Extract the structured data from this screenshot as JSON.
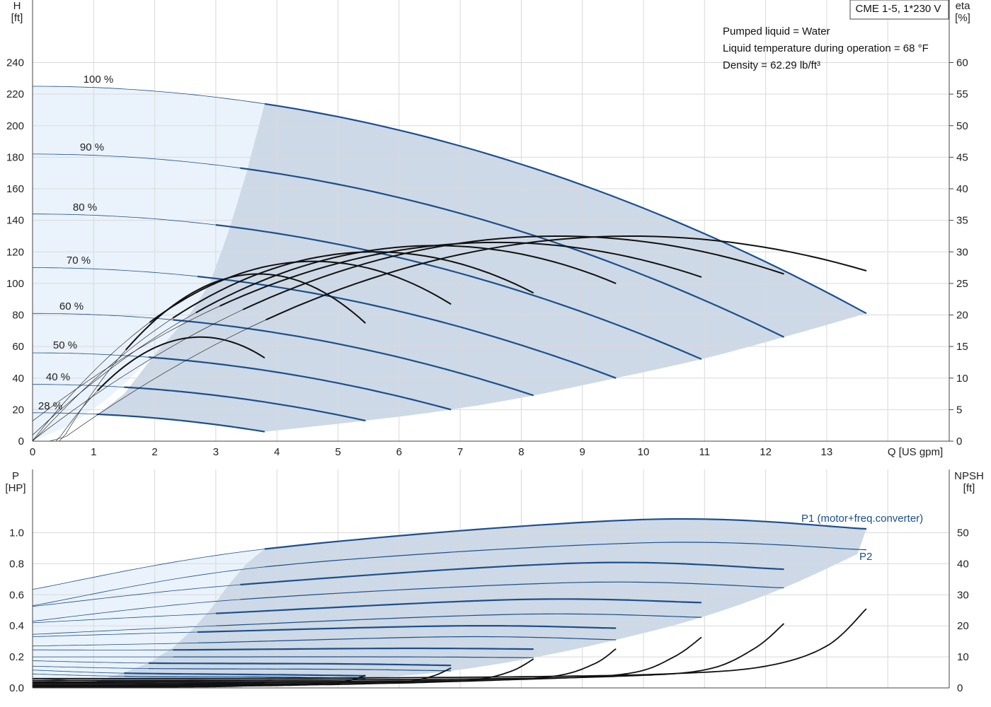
{
  "title": "CME 1-5, 1*230 V",
  "info": [
    "Pumped liquid = Water",
    "Liquid temperature during operation = 68 °F",
    "Density = 62.29 lb/ft³"
  ],
  "colors": {
    "envelope": "#cdd9e6",
    "envelope_light": "#eaf3fb",
    "curve_blue": "#1c4f8c",
    "curve_black": "#111111",
    "grid": "#d9d9d9"
  },
  "chart_data": [
    {
      "type": "line",
      "name": "head-efficiency",
      "xlabel": "Q [US gpm]",
      "ylabel": [
        "H",
        "[ft]"
      ],
      "y2label": [
        "eta",
        "[%]"
      ],
      "xlim": [
        0,
        15
      ],
      "ylim": [
        0,
        240
      ],
      "y2lim": [
        0,
        60
      ],
      "xticks": [
        0,
        1,
        2,
        3,
        4,
        5,
        6,
        7,
        8,
        9,
        10,
        11,
        12,
        13
      ],
      "yticks": [
        0,
        20,
        40,
        60,
        80,
        100,
        120,
        140,
        160,
        180,
        200,
        220,
        240
      ],
      "y2ticks": [
        0,
        5,
        10,
        15,
        20,
        25,
        30,
        35,
        40,
        45,
        50,
        55,
        60
      ],
      "grid": true,
      "speed_labels": [
        "100 %",
        "90 %",
        "80 %",
        "70 %",
        "60 %",
        "50 %",
        "40 %",
        "28 %"
      ],
      "head_curves": [
        {
          "speed": "100 %",
          "x": [
            0,
            3.8,
            13.65
          ],
          "y": [
            225,
            209,
            81
          ]
        },
        {
          "speed": "90 %",
          "x": [
            0,
            3.4,
            12.3
          ],
          "y": [
            182,
            169,
            66
          ]
        },
        {
          "speed": "80 %",
          "x": [
            0,
            3.0,
            10.95
          ],
          "y": [
            144,
            134,
            52
          ]
        },
        {
          "speed": "70 %",
          "x": [
            0,
            2.7,
            9.55
          ],
          "y": [
            110,
            102,
            40
          ]
        },
        {
          "speed": "60 %",
          "x": [
            0,
            2.3,
            8.2
          ],
          "y": [
            81,
            75,
            29
          ]
        },
        {
          "speed": "50 %",
          "x": [
            0,
            1.9,
            6.85
          ],
          "y": [
            56,
            52,
            20
          ]
        },
        {
          "speed": "40 %",
          "x": [
            0,
            1.5,
            5.45
          ],
          "y": [
            36,
            33,
            13
          ]
        },
        {
          "speed": "28 %",
          "x": [
            0,
            1.05,
            3.8
          ],
          "y": [
            18,
            16.5,
            6
          ]
        }
      ],
      "efficiency_curves": [
        {
          "speed": "100 %",
          "x": [
            0,
            9.8,
            13.65
          ],
          "eta": [
            0,
            32.5,
            27
          ]
        },
        {
          "speed": "90 %",
          "x": [
            0,
            8.6,
            12.3
          ],
          "eta": [
            0,
            32.5,
            26.5
          ]
        },
        {
          "speed": "80 %",
          "x": [
            0,
            7.6,
            10.95
          ],
          "eta": [
            0,
            31.5,
            26
          ]
        },
        {
          "speed": "70 %",
          "x": [
            0,
            6.6,
            9.55
          ],
          "eta": [
            0,
            31,
            25
          ]
        },
        {
          "speed": "60 %",
          "x": [
            0,
            5.6,
            8.2
          ],
          "eta": [
            0,
            30,
            23.5
          ]
        },
        {
          "speed": "50 %",
          "x": [
            0,
            4.6,
            6.85
          ],
          "eta": [
            0,
            28.5,
            21.7
          ]
        },
        {
          "speed": "40 %",
          "x": [
            0,
            3.7,
            5.45
          ],
          "eta": [
            0,
            26.5,
            18.7
          ]
        },
        {
          "speed": "28 %",
          "x": [
            0,
            2.75,
            3.8
          ],
          "eta": [
            0,
            16.5,
            13.2
          ]
        }
      ]
    },
    {
      "type": "line",
      "name": "power-npsh",
      "xlabel": "",
      "ylabel": [
        "P",
        "[HP]"
      ],
      "y2label": [
        "NPSH",
        "[ft]"
      ],
      "xlim": [
        0,
        15
      ],
      "ylim": [
        0,
        1.1
      ],
      "y2lim": [
        0,
        55
      ],
      "yticks": [
        0.0,
        0.2,
        0.4,
        0.6,
        0.8,
        1.0
      ],
      "ytick_labels": [
        "0.0",
        "0.2",
        "0.4",
        "0.6",
        "0.8",
        "1.0"
      ],
      "y2ticks": [
        0,
        10,
        20,
        30,
        40,
        50
      ],
      "grid": true,
      "series_labels": {
        "p1": "P1 (motor+freq.converter)",
        "p2": "P2"
      },
      "p1_curves": [
        {
          "speed": "100 %",
          "x": [
            0,
            3.8,
            10,
            13.65
          ],
          "y": [
            0.635,
            0.895,
            1.085,
            1.025
          ]
        },
        {
          "speed": "90 %",
          "x": [
            0,
            3.4,
            9,
            12.3
          ],
          "y": [
            0.525,
            0.665,
            0.805,
            0.765
          ]
        },
        {
          "speed": "80 %",
          "x": [
            0,
            3.0,
            8,
            10.95
          ],
          "y": [
            0.42,
            0.48,
            0.57,
            0.55
          ]
        },
        {
          "speed": "70 %",
          "x": [
            0,
            2.7,
            7,
            9.55
          ],
          "y": [
            0.33,
            0.36,
            0.4,
            0.385
          ]
        },
        {
          "speed": "60 %",
          "x": [
            0,
            2.3,
            6,
            8.2
          ],
          "y": [
            0.245,
            0.245,
            0.255,
            0.25
          ]
        },
        {
          "speed": "50 %",
          "x": [
            0,
            1.9,
            5,
            6.85
          ],
          "y": [
            0.175,
            0.16,
            0.155,
            0.145
          ]
        },
        {
          "speed": "40 %",
          "x": [
            0,
            1.5,
            4,
            5.45
          ],
          "y": [
            0.115,
            0.095,
            0.085,
            0.078
          ]
        },
        {
          "speed": "28 %",
          "x": [
            0,
            1.05,
            2.8,
            3.8
          ],
          "y": [
            0.062,
            0.045,
            0.04,
            0.036
          ]
        }
      ],
      "p2_curves": [
        {
          "speed": "100 %",
          "x": [
            0,
            3.8,
            10,
            13.65
          ],
          "y": [
            0.53,
            0.78,
            0.935,
            0.89
          ]
        },
        {
          "speed": "90 %",
          "x": [
            0,
            3.4,
            9,
            12.3
          ],
          "y": [
            0.43,
            0.57,
            0.68,
            0.645
          ]
        },
        {
          "speed": "80 %",
          "x": [
            0,
            3.0,
            8,
            10.95
          ],
          "y": [
            0.345,
            0.4,
            0.475,
            0.455
          ]
        },
        {
          "speed": "70 %",
          "x": [
            0,
            2.7,
            7,
            9.55
          ],
          "y": [
            0.27,
            0.29,
            0.33,
            0.31
          ]
        },
        {
          "speed": "60 %",
          "x": [
            0,
            2.3,
            6,
            8.2
          ],
          "y": [
            0.2,
            0.2,
            0.2,
            0.195
          ]
        },
        {
          "speed": "50 %",
          "x": [
            0,
            1.9,
            5,
            6.85
          ],
          "y": [
            0.14,
            0.125,
            0.12,
            0.11
          ]
        },
        {
          "speed": "40 %",
          "x": [
            0,
            1.5,
            4,
            5.45
          ],
          "y": [
            0.09,
            0.075,
            0.07,
            0.06
          ]
        },
        {
          "speed": "28 %",
          "x": [
            0,
            1.05,
            2.8,
            3.8
          ],
          "y": [
            0.048,
            0.035,
            0.03,
            0.028
          ]
        }
      ],
      "npsh_curves": [
        {
          "speed": "100 %",
          "x": [
            0,
            4,
            8,
            10.5,
            12,
            13.0,
            13.65
          ],
          "y": [
            3,
            3.1,
            3.6,
            4.6,
            7.0,
            13.5,
            25.5
          ]
        },
        {
          "speed": "90 %",
          "x": [
            0,
            3.6,
            7.2,
            9.5,
            11,
            11.8,
            12.3
          ],
          "y": [
            2.4,
            2.5,
            2.9,
            3.7,
            5.8,
            12.5,
            20.7
          ]
        },
        {
          "speed": "80 %",
          "x": [
            0,
            3.2,
            6.4,
            8.4,
            9.8,
            10.5,
            10.95
          ],
          "y": [
            1.9,
            2.0,
            2.3,
            3.0,
            4.8,
            10.0,
            16.3
          ]
        },
        {
          "speed": "70 %",
          "x": [
            0,
            2.8,
            5.6,
            7.3,
            8.55,
            9.2,
            9.55
          ],
          "y": [
            1.5,
            1.55,
            1.8,
            2.3,
            3.8,
            7.8,
            12.6
          ]
        },
        {
          "speed": "60 %",
          "x": [
            0,
            2.4,
            4.8,
            6.3,
            7.3,
            7.85,
            8.2
          ],
          "y": [
            1.1,
            1.15,
            1.3,
            1.7,
            2.8,
            5.5,
            9.3
          ]
        },
        {
          "speed": "50 %",
          "x": [
            0,
            2.0,
            4.0,
            5.2,
            6.1,
            6.55,
            6.85
          ],
          "y": [
            0.8,
            0.85,
            0.95,
            1.2,
            2.0,
            3.8,
            6.4
          ]
        },
        {
          "speed": "40 %",
          "x": [
            0,
            1.6,
            3.2,
            4.1,
            4.85,
            5.2,
            5.45
          ],
          "y": [
            0.55,
            0.57,
            0.62,
            0.8,
            1.3,
            2.5,
            4.0
          ]
        },
        {
          "speed": "28 %",
          "x": [
            0,
            1.1,
            2.2,
            2.9,
            3.4,
            3.65,
            3.8
          ],
          "y": [
            0.3,
            0.3,
            0.32,
            0.4,
            0.6,
            1.1,
            1.9
          ]
        }
      ]
    }
  ]
}
